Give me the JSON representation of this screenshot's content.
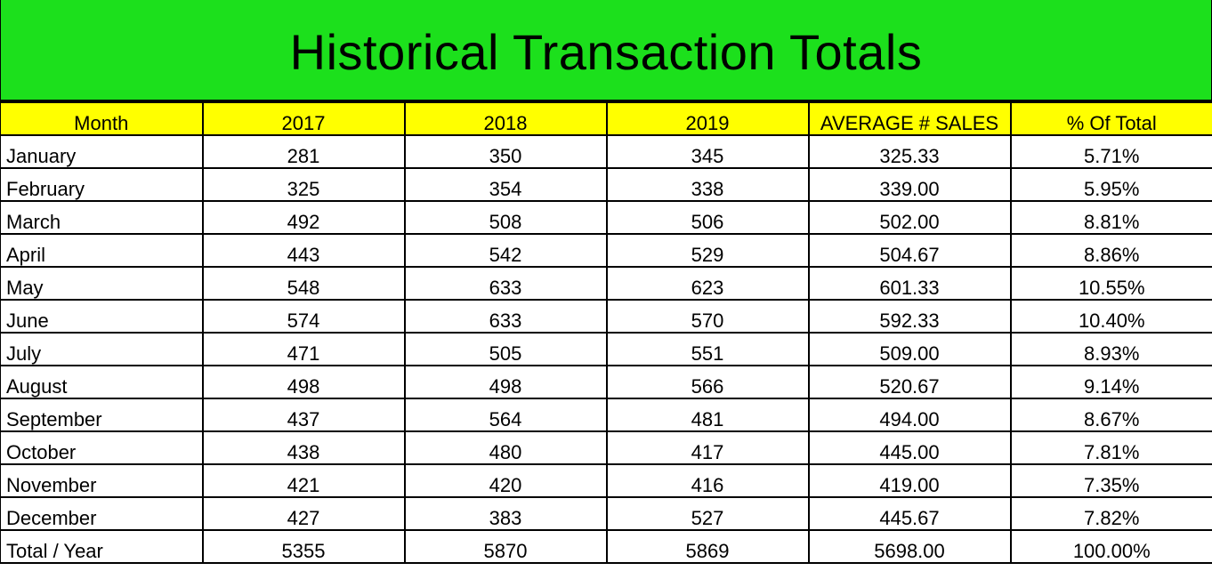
{
  "title": "Historical Transaction Totals",
  "colors": {
    "title_background": "#1ce01c",
    "header_background": "#ffff00",
    "grid_lines": "#000000"
  },
  "columns": [
    "Month",
    "2017",
    "2018",
    "2019",
    "AVERAGE # SALES",
    "% Of Total"
  ],
  "rows": [
    [
      "January",
      "281",
      "350",
      "345",
      "325.33",
      "5.71%"
    ],
    [
      "February",
      "325",
      "354",
      "338",
      "339.00",
      "5.95%"
    ],
    [
      "March",
      "492",
      "508",
      "506",
      "502.00",
      "8.81%"
    ],
    [
      "April",
      "443",
      "542",
      "529",
      "504.67",
      "8.86%"
    ],
    [
      "May",
      "548",
      "633",
      "623",
      "601.33",
      "10.55%"
    ],
    [
      "June",
      "574",
      "633",
      "570",
      "592.33",
      "10.40%"
    ],
    [
      "July",
      "471",
      "505",
      "551",
      "509.00",
      "8.93%"
    ],
    [
      "August",
      "498",
      "498",
      "566",
      "520.67",
      "9.14%"
    ],
    [
      "September",
      "437",
      "564",
      "481",
      "494.00",
      "8.67%"
    ],
    [
      "October",
      "438",
      "480",
      "417",
      "445.00",
      "7.81%"
    ],
    [
      "November",
      "421",
      "420",
      "416",
      "419.00",
      "7.35%"
    ],
    [
      "December",
      "427",
      "383",
      "527",
      "445.67",
      "7.82%"
    ],
    [
      "Total / Year",
      "5355",
      "5870",
      "5869",
      "5698.00",
      "100.00%"
    ]
  ]
}
